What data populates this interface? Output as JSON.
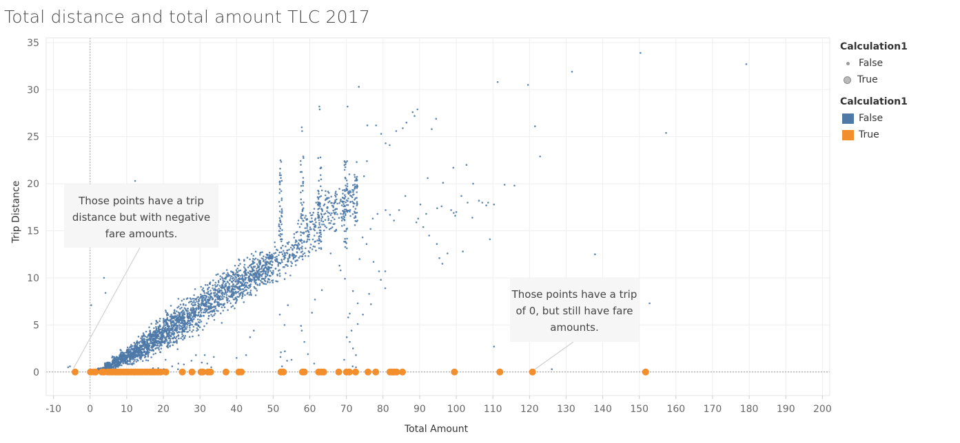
{
  "title": "Total distance and total amount TLC 2017",
  "legend": {
    "size_title": "Calculation1",
    "size_items": [
      "False",
      "True"
    ],
    "color_title": "Calculation1",
    "color_items": [
      {
        "label": "False",
        "color": "#4e79a7"
      },
      {
        "label": "True",
        "color": "#f28e2b"
      }
    ]
  },
  "annotations": {
    "negative_fare": "Those points have a trip distance but with negative fare amounts.",
    "zero_trip": "Those points have a trip of 0, but still have fare amounts."
  },
  "chart_data": {
    "type": "scatter",
    "title": "Total distance and total amount TLC 2017",
    "xlabel": "Total Amount",
    "ylabel": "Trip Distance",
    "xlim": [
      -12,
      202
    ],
    "ylim": [
      -2.5,
      35.5
    ],
    "xticks": [
      -10,
      0,
      10,
      20,
      30,
      40,
      50,
      60,
      70,
      80,
      90,
      100,
      110,
      120,
      130,
      140,
      150,
      160,
      170,
      180,
      190,
      200
    ],
    "yticks": [
      0,
      5,
      10,
      15,
      20,
      25,
      30,
      35
    ],
    "grid": true,
    "reference_lines": {
      "x": 0,
      "y": 0
    },
    "legend_position": "top-right",
    "series": [
      {
        "name": "False",
        "color": "#4e79a7",
        "marker_size": "small",
        "note": "dense cloud of several thousand trips; representative sampled points listed",
        "points": [
          [
            12.3,
            20.3
          ],
          [
            3.8,
            10.0
          ],
          [
            0.3,
            7.1
          ],
          [
            4.2,
            8.4
          ],
          [
            -5.5,
            0.6
          ],
          [
            -6.0,
            0.5
          ],
          [
            57.8,
            26.0
          ],
          [
            57.9,
            25.6
          ],
          [
            62.6,
            28.2
          ],
          [
            62.7,
            27.9
          ],
          [
            70.3,
            28.2
          ],
          [
            73.4,
            30.3
          ],
          [
            75.7,
            26.2
          ],
          [
            78.1,
            26.2
          ],
          [
            80.7,
            24.3
          ],
          [
            83.6,
            25.6
          ],
          [
            85.4,
            25.9
          ],
          [
            86.4,
            26.5
          ],
          [
            88.1,
            27.6
          ],
          [
            88.6,
            27.2
          ],
          [
            89.4,
            27.9
          ],
          [
            93.3,
            25.8
          ],
          [
            94.5,
            26.9
          ],
          [
            81.8,
            24.1
          ],
          [
            79.5,
            25.3
          ],
          [
            52.0,
            22.5
          ],
          [
            51.9,
            21.6
          ],
          [
            52.1,
            20.9
          ],
          [
            58.2,
            22.9
          ],
          [
            62.9,
            22.8
          ],
          [
            70.2,
            22.4
          ],
          [
            72.8,
            22.3
          ],
          [
            70.8,
            21.0
          ],
          [
            75.6,
            22.4
          ],
          [
            74.8,
            20.8
          ],
          [
            92.2,
            20.6
          ],
          [
            96.4,
            20.1
          ],
          [
            99.2,
            21.7
          ],
          [
            102.8,
            22.0
          ],
          [
            104.6,
            20.0
          ],
          [
            115.9,
            19.8
          ],
          [
            122.9,
            22.9
          ],
          [
            121.5,
            26.1
          ],
          [
            111.3,
            30.8
          ],
          [
            119.6,
            30.5
          ],
          [
            131.6,
            31.9
          ],
          [
            150.3,
            33.9
          ],
          [
            179.2,
            32.7
          ],
          [
            157.3,
            25.4
          ],
          [
            101.4,
            18.7
          ],
          [
            103.1,
            18.0
          ],
          [
            106.2,
            18.2
          ],
          [
            107.1,
            18.0
          ],
          [
            108.2,
            17.7
          ],
          [
            108.7,
            18.0
          ],
          [
            110.3,
            17.8
          ],
          [
            100.0,
            17.0
          ],
          [
            99.3,
            16.9
          ],
          [
            99.7,
            16.6
          ],
          [
            94.8,
            17.4
          ],
          [
            96.0,
            17.6
          ],
          [
            98.6,
            17.2
          ],
          [
            91.8,
            16.8
          ],
          [
            90.2,
            17.8
          ],
          [
            89.6,
            16.3
          ],
          [
            89.1,
            15.9
          ],
          [
            91.0,
            15.4
          ],
          [
            92.6,
            14.5
          ],
          [
            94.7,
            13.6
          ],
          [
            96.2,
            11.5
          ],
          [
            97.6,
            12.6
          ],
          [
            95.4,
            12.1
          ],
          [
            101.8,
            12.8
          ],
          [
            104.4,
            16.4
          ],
          [
            109.2,
            14.1
          ],
          [
            113.2,
            19.9
          ],
          [
            86.1,
            18.7
          ],
          [
            84.4,
            17.2
          ],
          [
            83.0,
            16.1
          ],
          [
            80.7,
            17.2
          ],
          [
            81.9,
            16.7
          ],
          [
            78.5,
            16.8
          ],
          [
            77.2,
            16.3
          ],
          [
            76.6,
            15.2
          ],
          [
            75.5,
            13.6
          ],
          [
            74.4,
            14.3
          ],
          [
            137.9,
            12.5
          ],
          [
            152.8,
            7.3
          ],
          [
            110.3,
            2.7
          ],
          [
            126.1,
            0.3
          ],
          [
            68.1,
            11.3
          ],
          [
            68.4,
            10.8
          ],
          [
            69.6,
            9.9
          ],
          [
            71.8,
            8.6
          ],
          [
            73.1,
            7.3
          ],
          [
            70.9,
            6.2
          ],
          [
            70.5,
            5.8
          ],
          [
            70.1,
            3.7
          ],
          [
            70.9,
            3.2
          ],
          [
            71.7,
            0.6
          ],
          [
            72.6,
            1.8
          ],
          [
            76.2,
            8.3
          ],
          [
            76.7,
            7.2
          ],
          [
            74.5,
            6.1
          ],
          [
            73.1,
            5.1
          ],
          [
            71.4,
            4.4
          ],
          [
            71.8,
            2.5
          ],
          [
            69.4,
            1.3
          ],
          [
            72.6,
            0.5
          ],
          [
            73.6,
            12.0
          ],
          [
            77.4,
            11.7
          ],
          [
            78.9,
            10.7
          ],
          [
            80.6,
            10.7
          ],
          [
            79.4,
            9.8
          ],
          [
            80.6,
            8.9
          ],
          [
            65.7,
            12.6
          ],
          [
            63.3,
            8.7
          ],
          [
            61.4,
            7.7
          ],
          [
            60.6,
            6.3
          ],
          [
            57.6,
            4.9
          ],
          [
            57.8,
            4.4
          ],
          [
            58.5,
            3.2
          ],
          [
            59.5,
            1.9
          ],
          [
            61.2,
            0.9
          ],
          [
            54.0,
            7.1
          ],
          [
            53.1,
            5.0
          ],
          [
            51.8,
            6.1
          ],
          [
            52.1,
            2.1
          ],
          [
            52.0,
            1.6
          ],
          [
            53.2,
            2.2
          ],
          [
            55.0,
            1.3
          ],
          [
            52.4,
            0.6
          ],
          [
            53.8,
            1.2
          ],
          [
            44.7,
            4.4
          ],
          [
            43.7,
            3.7
          ],
          [
            42.6,
            1.8
          ],
          [
            40.0,
            1.5
          ],
          [
            33.8,
            1.6
          ],
          [
            32.0,
            0.9
          ],
          [
            33.1,
            0.5
          ],
          [
            30.5,
            1.0
          ],
          [
            31.3,
            1.8
          ],
          [
            25.6,
            0.8
          ],
          [
            27.7,
            1.2
          ],
          [
            28.9,
            1.8
          ],
          [
            24.1,
            0.9
          ],
          [
            22.4,
            0.6
          ],
          [
            20.6,
            1.3
          ],
          [
            20.1,
            0.3
          ],
          [
            17.2,
            0.4
          ],
          [
            17.0,
            0.3
          ],
          [
            18.6,
            0.4
          ],
          [
            24.0,
            0.3
          ]
        ],
        "cloud_centers": [
          [
            3,
            0.25
          ],
          [
            5,
            0.6
          ],
          [
            7,
            1.0
          ],
          [
            9,
            1.4
          ],
          [
            11,
            1.8
          ],
          [
            13,
            2.3
          ],
          [
            15,
            2.8
          ],
          [
            17,
            3.3
          ],
          [
            19,
            3.8
          ],
          [
            21,
            4.4
          ],
          [
            23,
            4.9
          ],
          [
            25,
            5.4
          ],
          [
            27,
            6.0
          ],
          [
            29,
            6.5
          ],
          [
            31,
            7.1
          ],
          [
            33,
            7.6
          ],
          [
            35,
            8.1
          ],
          [
            37,
            8.6
          ],
          [
            39,
            9.1
          ],
          [
            41,
            9.6
          ],
          [
            43,
            10.0
          ],
          [
            45,
            10.4
          ],
          [
            47,
            10.8
          ],
          [
            49,
            11.2
          ],
          [
            51,
            11.6
          ],
          [
            53,
            12.1
          ],
          [
            55,
            12.7
          ],
          [
            57,
            13.5
          ],
          [
            59,
            14.5
          ],
          [
            61,
            15.5
          ],
          [
            63,
            16.3
          ],
          [
            65,
            17.0
          ],
          [
            67,
            17.5
          ],
          [
            69,
            18.0
          ],
          [
            71,
            18.5
          ]
        ],
        "cloud_half_widths": [
          0.25,
          0.5,
          0.8,
          1.1,
          1.4,
          1.6,
          1.9,
          2.1,
          2.3,
          2.5,
          2.7,
          2.9,
          3.0,
          3.1,
          3.2,
          3.2,
          3.2,
          3.1,
          3.0,
          2.9,
          2.8,
          2.7,
          2.6,
          2.6,
          2.7,
          2.8,
          3.0,
          3.3,
          3.5,
          3.7,
          3.7,
          3.6,
          3.4,
          3.2,
          3.0
        ]
      },
      {
        "name": "True",
        "color": "#f28e2b",
        "marker_size": "large",
        "x": [
          -4.1,
          0.1,
          1.0,
          1.5,
          3.2,
          3.8,
          4.8,
          5.5,
          6.1,
          6.8,
          7.4,
          7.9,
          8.4,
          9.2,
          9.8,
          10.4,
          11.2,
          11.9,
          12.4,
          13.0,
          13.6,
          14.3,
          15.0,
          15.6,
          16.4,
          17.0,
          17.7,
          18.5,
          19.3,
          20.7,
          25.2,
          27.8,
          30.3,
          30.8,
          32.2,
          32.9,
          37.1,
          40.6,
          41.3,
          52.1,
          52.8,
          58.0,
          58.5,
          62.4,
          63.1,
          63.8,
          67.9,
          70.0,
          70.8,
          72.5,
          75.9,
          78.0,
          81.9,
          82.5,
          83.0,
          83.7,
          85.3,
          99.5,
          111.9,
          120.8,
          151.7
        ],
        "y_value": 0
      }
    ]
  }
}
